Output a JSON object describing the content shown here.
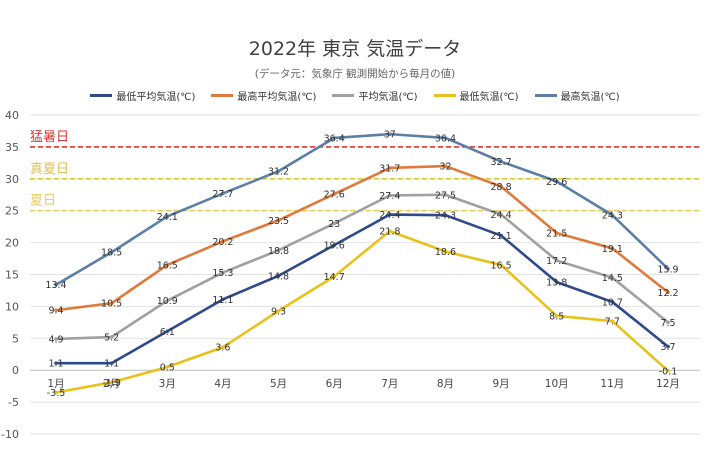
{
  "chart_data": {
    "type": "line",
    "title": "2022年 東京 気温データ",
    "subtitle": "(データ元：気象庁 観測開始から毎月の値)",
    "categories": [
      "1月",
      "2月",
      "3月",
      "4月",
      "5月",
      "6月",
      "7月",
      "8月",
      "9月",
      "10月",
      "11月",
      "12月"
    ],
    "ylim": [
      -10,
      40
    ],
    "yticks": [
      40,
      35,
      30,
      25,
      20,
      15,
      10,
      5,
      0,
      -5,
      -10
    ],
    "grid": true,
    "legend_position": "top",
    "series": [
      {
        "name": "最低平均気温(℃)",
        "color": "#2e4a8a",
        "values": [
          1.1,
          1.1,
          6.1,
          11.1,
          14.8,
          19.6,
          24.4,
          24.3,
          21.1,
          13.8,
          10.7,
          3.7
        ]
      },
      {
        "name": "最高平均気温(℃)",
        "color": "#e07a3c",
        "values": [
          9.4,
          10.5,
          16.5,
          20.2,
          23.5,
          27.6,
          31.7,
          32,
          28.8,
          21.5,
          19.1,
          12.2
        ]
      },
      {
        "name": "平均気温(℃)",
        "color": "#a0a0a0",
        "values": [
          4.9,
          5.2,
          10.9,
          15.3,
          18.8,
          23,
          27.4,
          27.5,
          24.4,
          17.2,
          14.5,
          7.5
        ]
      },
      {
        "name": "最低気温(℃)",
        "color": "#e8c21a",
        "values": [
          -3.5,
          -1.9,
          0.5,
          3.6,
          9.3,
          14.7,
          21.8,
          18.6,
          16.5,
          8.5,
          7.7,
          -0.1
        ]
      },
      {
        "name": "最高気温(℃)",
        "color": "#5b7fa6",
        "values": [
          13.4,
          18.5,
          24.1,
          27.7,
          31.2,
          36.4,
          37,
          36.4,
          32.7,
          29.6,
          24.3,
          15.9
        ]
      }
    ],
    "reference_lines": [
      {
        "label": "猛暑日",
        "value": 35,
        "color": "#d93636",
        "text_color": "#d93636"
      },
      {
        "label": "真夏日",
        "value": 30,
        "color": "#d4cc3a",
        "text_color": "#e0c050"
      },
      {
        "label": "夏日",
        "value": 25,
        "color": "#e0d060",
        "text_color": "#e8cc66"
      }
    ]
  }
}
